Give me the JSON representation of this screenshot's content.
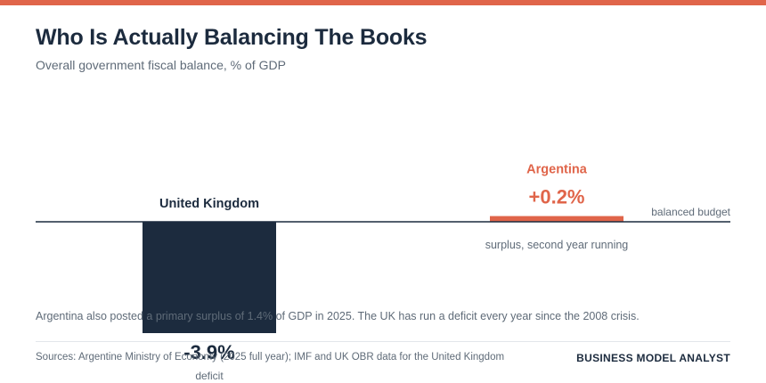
{
  "header": {
    "title": "Who Is Actually Balancing The Books",
    "subtitle": "Overall government fiscal balance, % of GDP"
  },
  "colors": {
    "accent": "#e0654a",
    "united_kingdom": "#1c2b3e",
    "argentina": "#e0654a",
    "muted_text": "#5f6b78"
  },
  "chart_data": {
    "type": "bar",
    "title": "Who Is Actually Balancing The Books",
    "subtitle": "Overall government fiscal balance, % of GDP",
    "categories": [
      "United Kingdom",
      "Argentina"
    ],
    "values": [
      -3.9,
      0.2
    ],
    "value_labels": [
      "-3.9%",
      "+0.2%"
    ],
    "bar_notes": [
      "deficit",
      "surplus, second year running"
    ],
    "bar_colors": [
      "#1c2b3e",
      "#e0654a"
    ],
    "baseline_label": "balanced budget",
    "ylim": [
      -4,
      0.2
    ],
    "grid": false
  },
  "note": "Argentina also posted a primary surplus of 1.4% of GDP in 2025. The UK has run a deficit every year since the 2008 crisis.",
  "footer": {
    "sources": "Sources: Argentine Ministry of Economy (2025 full year); IMF and UK OBR data for the United Kingdom",
    "brand": "BUSINESS MODEL ANALYST"
  }
}
